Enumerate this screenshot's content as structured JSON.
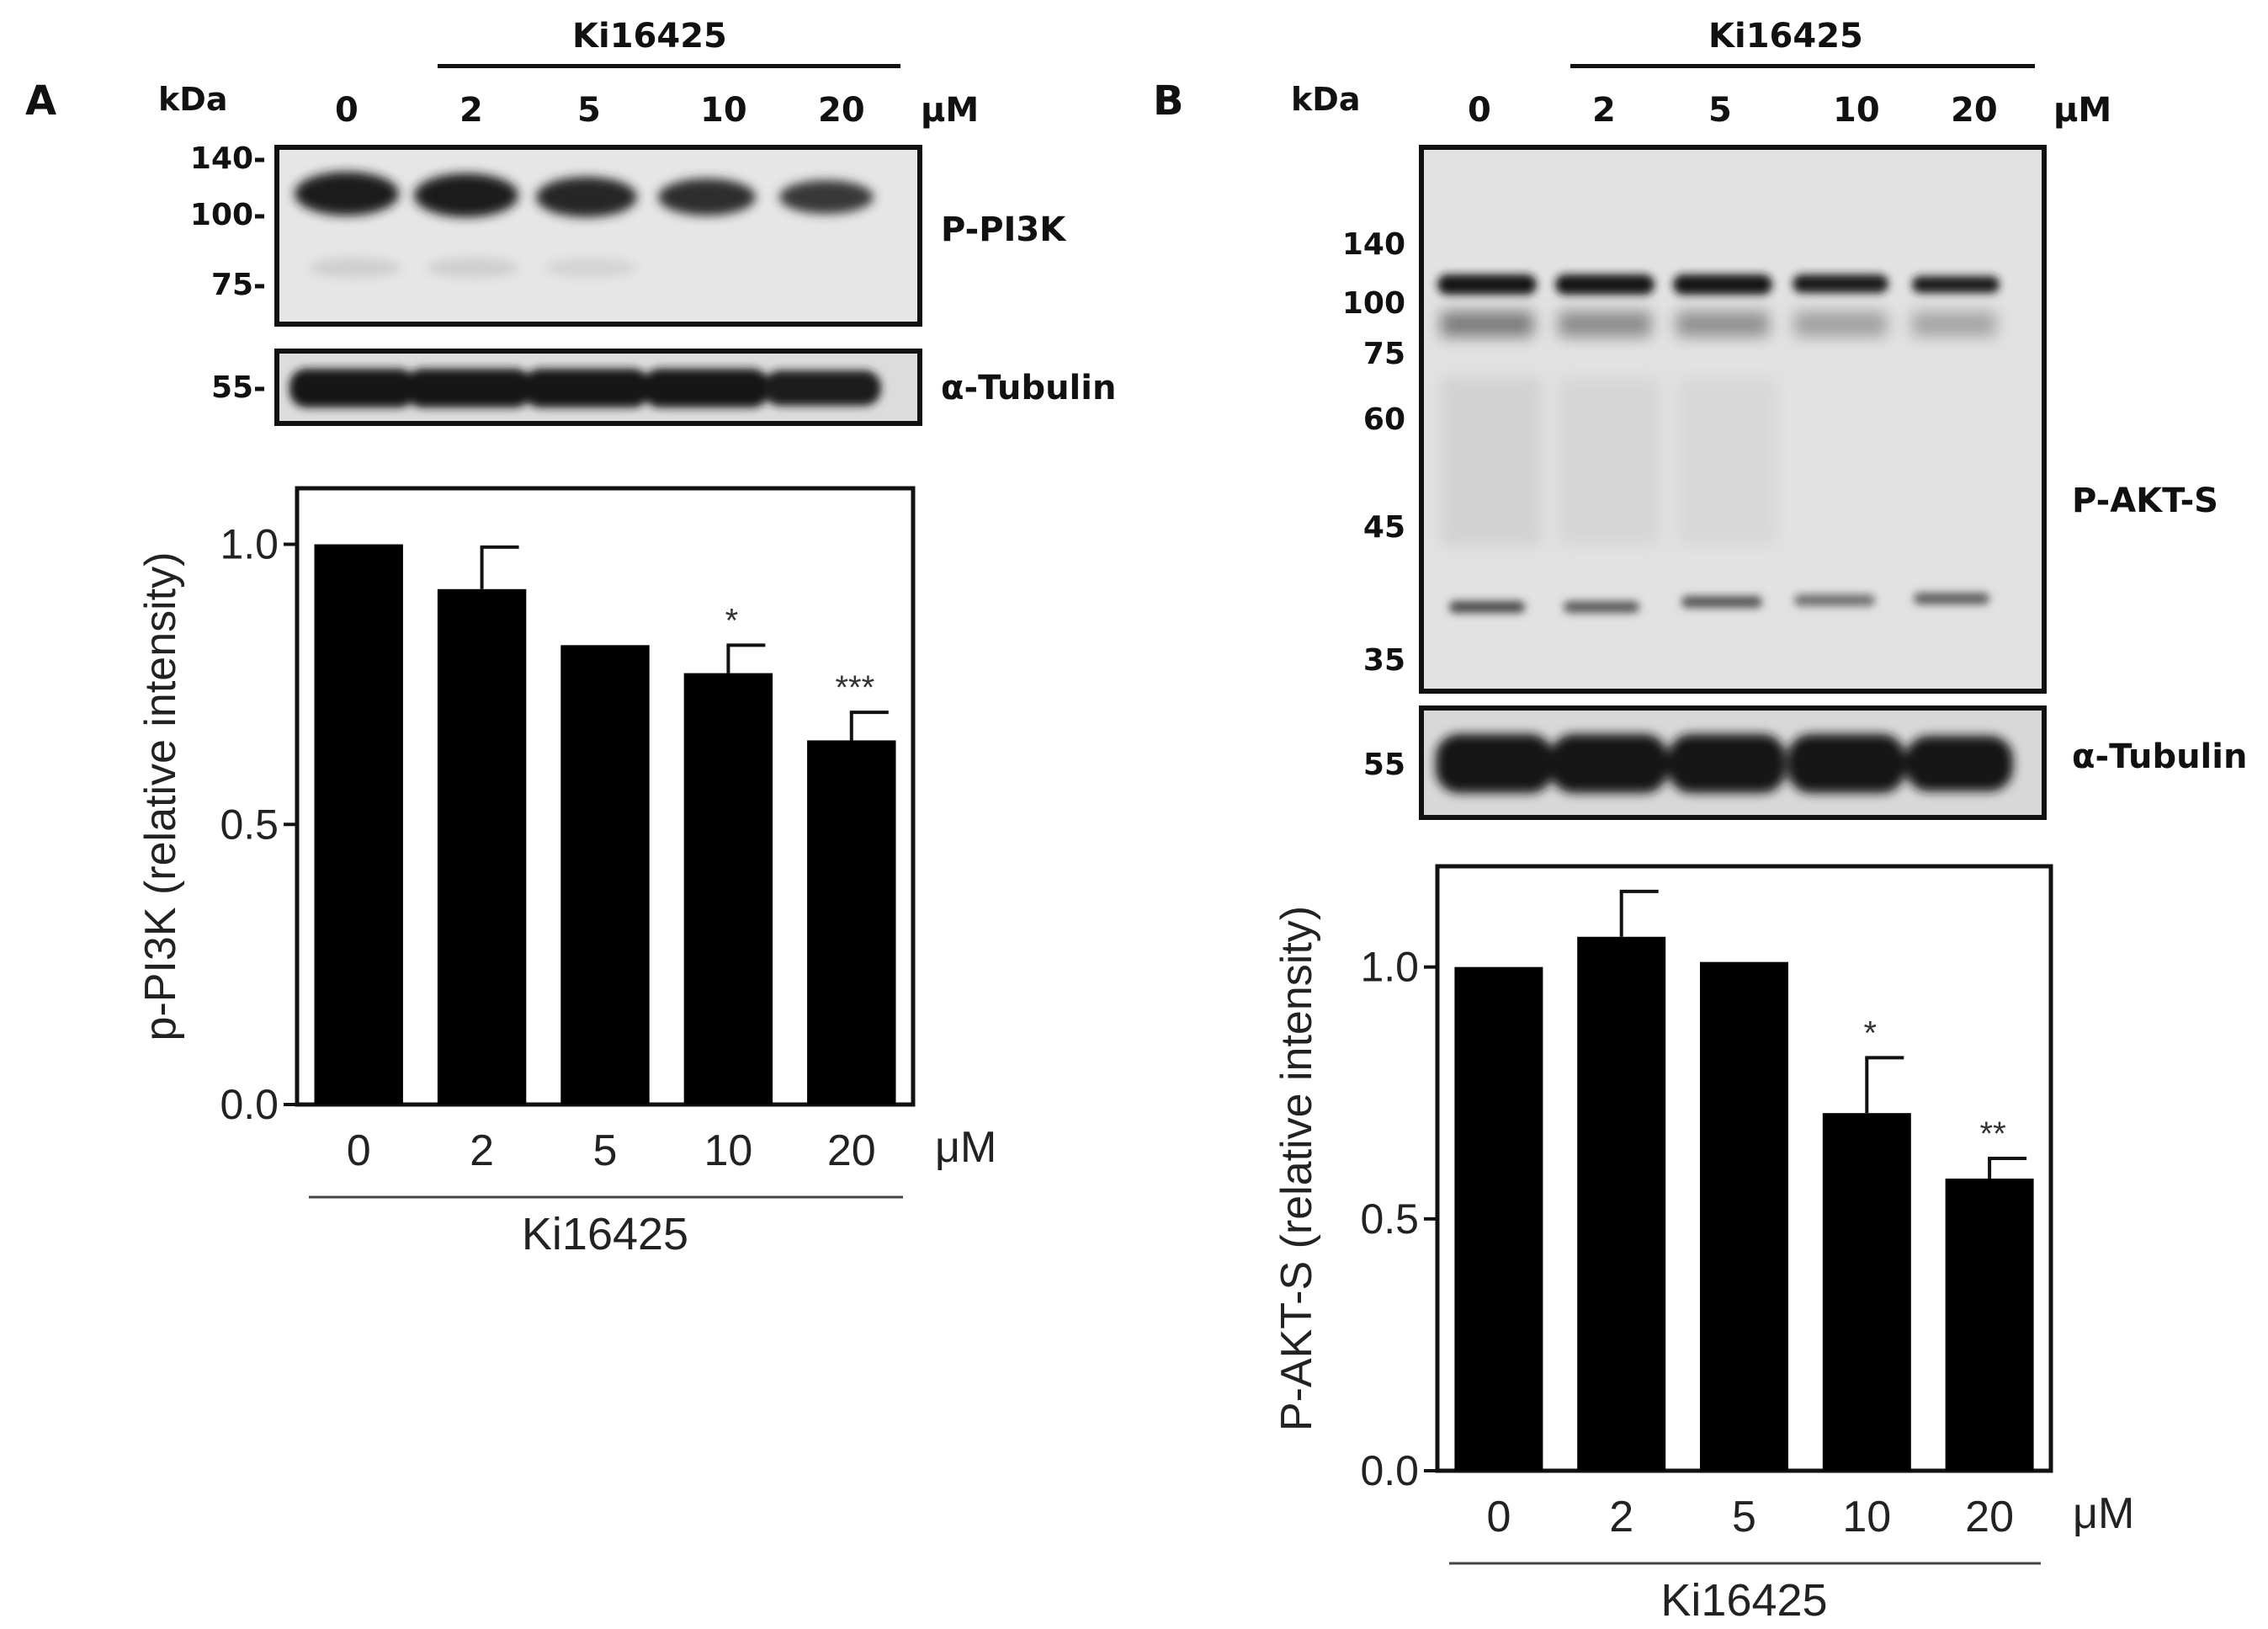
{
  "panel_a": {
    "letter": "A",
    "kda_label": "kDa",
    "treatment_label": "Ki16425",
    "unit_label": "μM",
    "lanes": [
      "0",
      "2",
      "5",
      "10",
      "20"
    ],
    "mw_markers_top": [
      "140-",
      "100-",
      "75-"
    ],
    "mw_marker_tubulin": "55-",
    "blot_top_label": "P-PI3K",
    "blot_tubulin_label": "α-Tubulin"
  },
  "panel_b": {
    "letter": "B",
    "kda_label": "kDa",
    "treatment_label": "Ki16425",
    "unit_label": "μM",
    "lanes": [
      "0",
      "2",
      "5",
      "10",
      "20"
    ],
    "mw_markers_top": [
      "140",
      "100",
      "75",
      "60",
      "45",
      "35"
    ],
    "mw_marker_tubulin": "55",
    "blot_top_label": "P-AKT-S",
    "blot_tubulin_label": "α-Tubulin"
  },
  "chart_data": [
    {
      "type": "bar",
      "panel": "A",
      "categories": [
        "0",
        "2",
        "5",
        "10",
        "20"
      ],
      "values": [
        1.0,
        0.92,
        0.82,
        0.77,
        0.65
      ],
      "error": [
        0,
        0.075,
        0,
        0.05,
        0.05
      ],
      "significance": [
        "",
        "",
        "",
        "*",
        "***"
      ],
      "ylabel": "p-PI3K (relative intensity)",
      "xlabel": "Ki16425",
      "x_unit": "μM",
      "yticks": [
        "0.0",
        "0.5",
        "1.0"
      ],
      "ylim": [
        0,
        1.1
      ],
      "bar_color": "#000000",
      "grid": false
    },
    {
      "type": "bar",
      "panel": "B",
      "categories": [
        "0",
        "2",
        "5",
        "10",
        "20"
      ],
      "values": [
        1.0,
        1.06,
        1.01,
        0.71,
        0.58
      ],
      "error": [
        0,
        0.09,
        0,
        0.11,
        0.04
      ],
      "significance": [
        "",
        "",
        "",
        "*",
        "**"
      ],
      "ylabel": "P-AKT-S (relative intensity)",
      "xlabel": "Ki16425",
      "x_unit": "μM",
      "yticks": [
        "0.0",
        "0.5",
        "1.0"
      ],
      "ylim": [
        0,
        1.2
      ],
      "bar_color": "#000000",
      "grid": false
    }
  ]
}
